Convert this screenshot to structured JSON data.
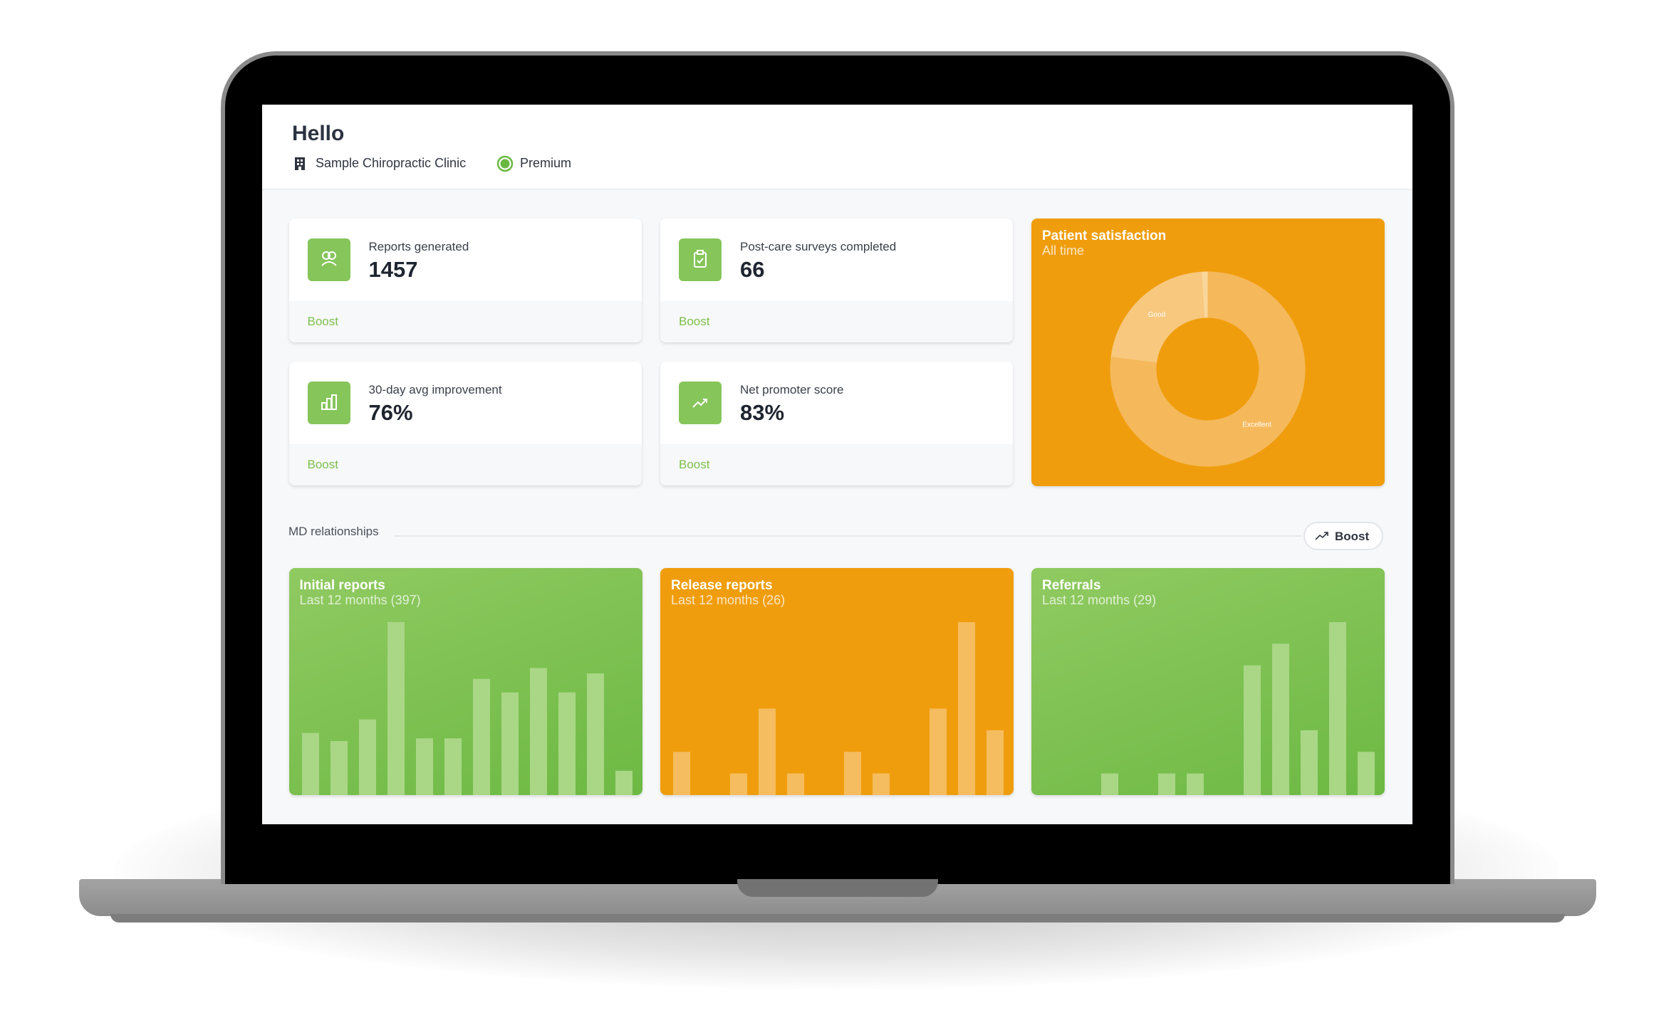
{
  "header": {
    "title": "Hello",
    "clinic": "Sample Chiropractic Clinic",
    "plan": "Premium"
  },
  "stats": [
    {
      "label": "Reports generated",
      "value": "1457",
      "action": "Boost"
    },
    {
      "label": "Post-care surveys completed",
      "value": "66",
      "action": "Boost"
    },
    {
      "label": "30-day avg improvement",
      "value": "76%",
      "action": "Boost"
    },
    {
      "label": "Net promoter score",
      "value": "83%",
      "action": "Boost"
    }
  ],
  "section": {
    "title": "MD relationships",
    "action": "Boost"
  },
  "chart_data": [
    {
      "type": "pie",
      "title": "Patient satisfaction",
      "subtitle": "All time",
      "donut": true,
      "categories": [
        "Excellent",
        "Good",
        null
      ],
      "values": [
        77,
        22,
        1
      ],
      "colors": [
        "#f5b95c",
        "#f7c87e",
        "#f9d79c"
      ]
    },
    {
      "type": "bar",
      "title": "Initial reports",
      "subtitle": "Last 12 months (397)",
      "values": [
        23,
        20,
        28,
        64,
        21,
        21,
        43,
        38,
        47,
        38,
        45,
        9
      ],
      "ylim": [
        0,
        64
      ],
      "color": "#a9d786"
    },
    {
      "type": "bar",
      "title": "Release reports",
      "subtitle": "Last 12 months (26)",
      "values": [
        2,
        0,
        1,
        4,
        1,
        0,
        2,
        1,
        0,
        4,
        8,
        3
      ],
      "ylim": [
        0,
        8
      ],
      "color": "#f5bd5f"
    },
    {
      "type": "bar",
      "title": "Referrals",
      "subtitle": "Last 12 months (29)",
      "values": [
        0,
        0,
        1,
        0,
        1,
        1,
        0,
        6,
        7,
        3,
        8,
        2
      ],
      "ylim": [
        0,
        8
      ],
      "color": "#a9d786"
    }
  ]
}
